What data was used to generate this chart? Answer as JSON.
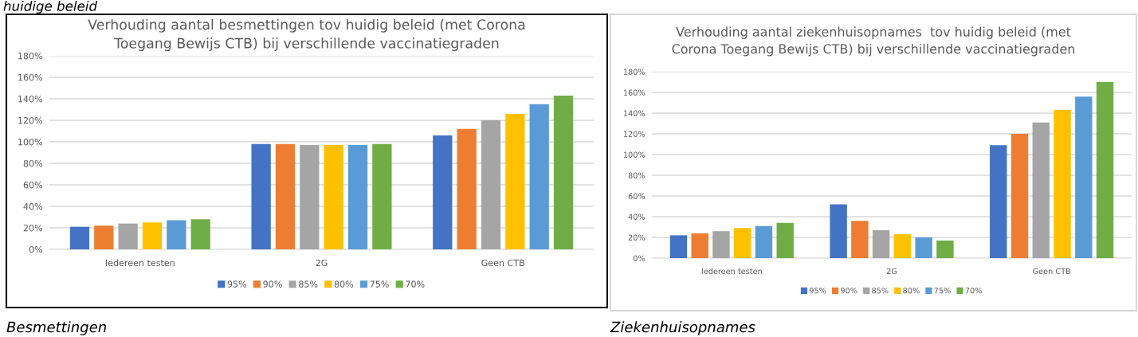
{
  "chart_data": [
    {
      "type": "bar",
      "title": "Verhouding aantal besmettingen tov huidig beleid (met Corona\nToegang Bewijs CTB) bij verschillende vaccinatiegraden",
      "categories": [
        "Iedereen testen",
        "2G",
        "Geen CTB"
      ],
      "series": [
        {
          "name": "95%",
          "color": "#4472c4",
          "values": [
            21,
            98,
            106
          ]
        },
        {
          "name": "90%",
          "color": "#ed7d31",
          "values": [
            22,
            98,
            112
          ]
        },
        {
          "name": "85%",
          "color": "#a5a5a5",
          "values": [
            24,
            97,
            120
          ]
        },
        {
          "name": "80%",
          "color": "#ffc000",
          "values": [
            25,
            97,
            126
          ]
        },
        {
          "name": "75%",
          "color": "#5b9bd5",
          "values": [
            27,
            97,
            135
          ]
        },
        {
          "name": "70%",
          "color": "#70ad47",
          "values": [
            28,
            98,
            143
          ]
        }
      ],
      "ylim": [
        0,
        180
      ],
      "yticks": [
        {
          "value": 0,
          "label": "0%"
        },
        {
          "value": 20,
          "label": "20%"
        },
        {
          "value": 40,
          "label": "40%"
        },
        {
          "value": 60,
          "label": "60%"
        },
        {
          "value": 80,
          "label": "80%"
        },
        {
          "value": 100,
          "label": "100%"
        },
        {
          "value": 120,
          "label": "120%"
        },
        {
          "value": 140,
          "label": "140%"
        },
        {
          "value": 160,
          "label": "160%"
        },
        {
          "value": 180,
          "label": "180%"
        }
      ],
      "grid": "y",
      "legend": "bottom",
      "annotations": [
        "huidige beleid",
        "Besmettingen"
      ]
    },
    {
      "type": "bar",
      "title": "Verhouding aantal ziekenhuisopnames  tov huidig beleid (met\nCorona Toegang Bewijs CTB) bij verschillende vaccinatiegraden",
      "categories": [
        "Iedereen testen",
        "2G",
        "Geen CTB"
      ],
      "series": [
        {
          "name": "95%",
          "color": "#4472c4",
          "values": [
            22,
            52,
            109
          ]
        },
        {
          "name": "90%",
          "color": "#ed7d31",
          "values": [
            24,
            36,
            120
          ]
        },
        {
          "name": "85%",
          "color": "#a5a5a5",
          "values": [
            26,
            27,
            131
          ]
        },
        {
          "name": "80%",
          "color": "#ffc000",
          "values": [
            29,
            23,
            143
          ]
        },
        {
          "name": "75%",
          "color": "#5b9bd5",
          "values": [
            31,
            20,
            156
          ]
        },
        {
          "name": "70%",
          "color": "#70ad47",
          "values": [
            34,
            17,
            170
          ]
        }
      ],
      "ylim": [
        0,
        180
      ],
      "yticks": [
        {
          "value": 0,
          "label": "0%"
        },
        {
          "value": 20,
          "label": "20%"
        },
        {
          "value": 40,
          "label": "40%"
        },
        {
          "value": 60,
          "label": "60%"
        },
        {
          "value": 80,
          "label": "80%"
        },
        {
          "value": 100,
          "label": "100%"
        },
        {
          "value": 120,
          "label": "120%"
        },
        {
          "value": 140,
          "label": "140%"
        },
        {
          "value": 160,
          "label": "160%"
        },
        {
          "value": 180,
          "label": "180%"
        }
      ],
      "grid": "y",
      "legend": "bottom",
      "annotations": [
        "Ziekenhuisopnames"
      ]
    }
  ]
}
